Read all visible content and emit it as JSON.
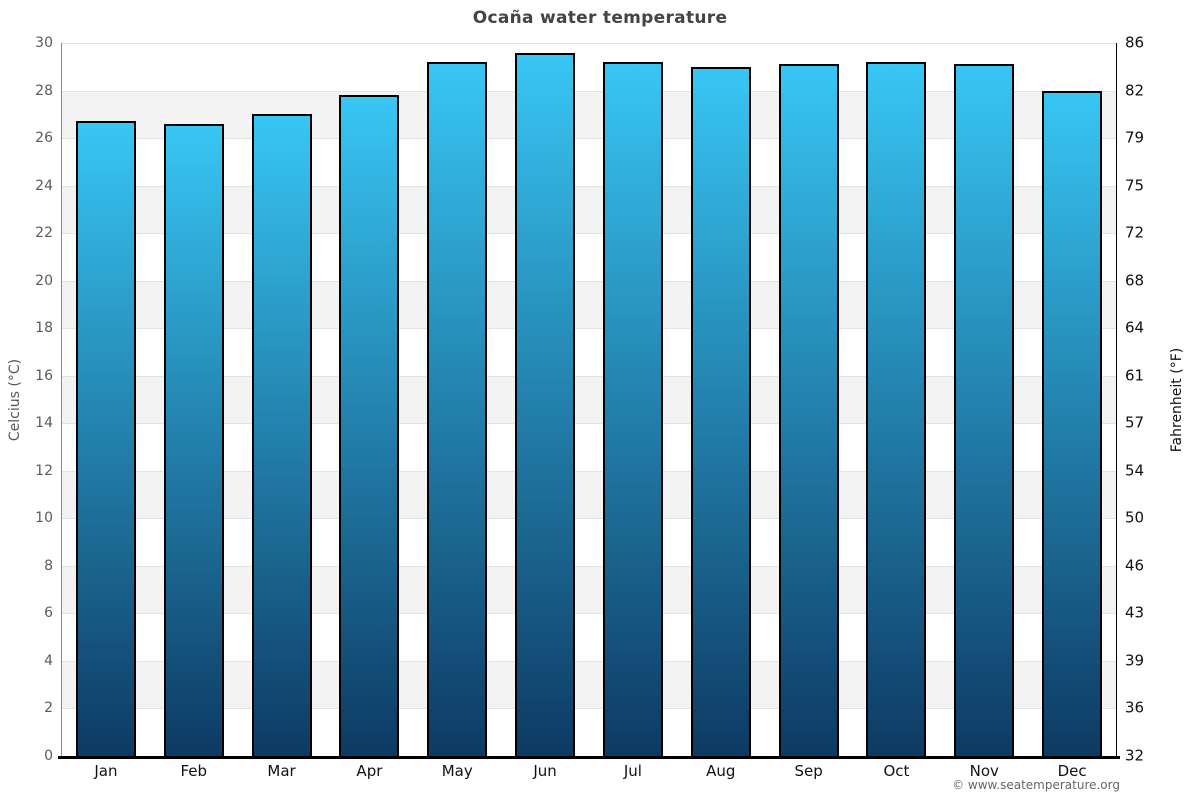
{
  "title": "Ocaña water temperature",
  "footer": "© www.seatemperature.org",
  "chart_data": {
    "type": "bar",
    "title": "Ocaña water temperature",
    "categories": [
      "Jan",
      "Feb",
      "Mar",
      "Apr",
      "May",
      "Jun",
      "Jul",
      "Aug",
      "Sep",
      "Oct",
      "Nov",
      "Dec"
    ],
    "values": [
      26.7,
      26.6,
      27.0,
      27.8,
      29.2,
      29.6,
      29.2,
      29.0,
      29.1,
      29.2,
      29.1,
      28.0
    ],
    "unit": "°C",
    "ylabel_left": "Celcius (°C)",
    "ylabel_right": "Fahrenheit (°F)",
    "ylim": [
      0,
      30
    ],
    "yticks_celsius": [
      "30",
      "28",
      "26",
      "24",
      "22",
      "20",
      "18",
      "16",
      "14",
      "12",
      "10",
      "8",
      "6",
      "4",
      "2",
      "0"
    ],
    "yticks_fahrenheit": [
      "86",
      "82",
      "79",
      "75",
      "72",
      "68",
      "64",
      "61",
      "57",
      "54",
      "50",
      "46",
      "43",
      "39",
      "36",
      "32"
    ],
    "grid": "horizontal-bands-alternating",
    "legend": "none",
    "bar_count": 12
  },
  "colors": {
    "bar_gradient_top": "#38c6f4",
    "bar_gradient_bottom": "#0d3a63",
    "bar_border": "#000000",
    "band_white": "#ffffff",
    "band_gray": "#f3f3f3",
    "gridline": "#e2e2e2",
    "title_text": "#444444",
    "left_tick_text": "#5a5a64",
    "right_tick_text": "#111111",
    "month_text": "#111111",
    "left_axis_title_text": "#55555f",
    "right_axis_title_text": "#111111",
    "footer_text": "#666666",
    "left_spine": "#8a8a8a",
    "right_spine": "#000000",
    "bottom_spine": "#000000"
  }
}
